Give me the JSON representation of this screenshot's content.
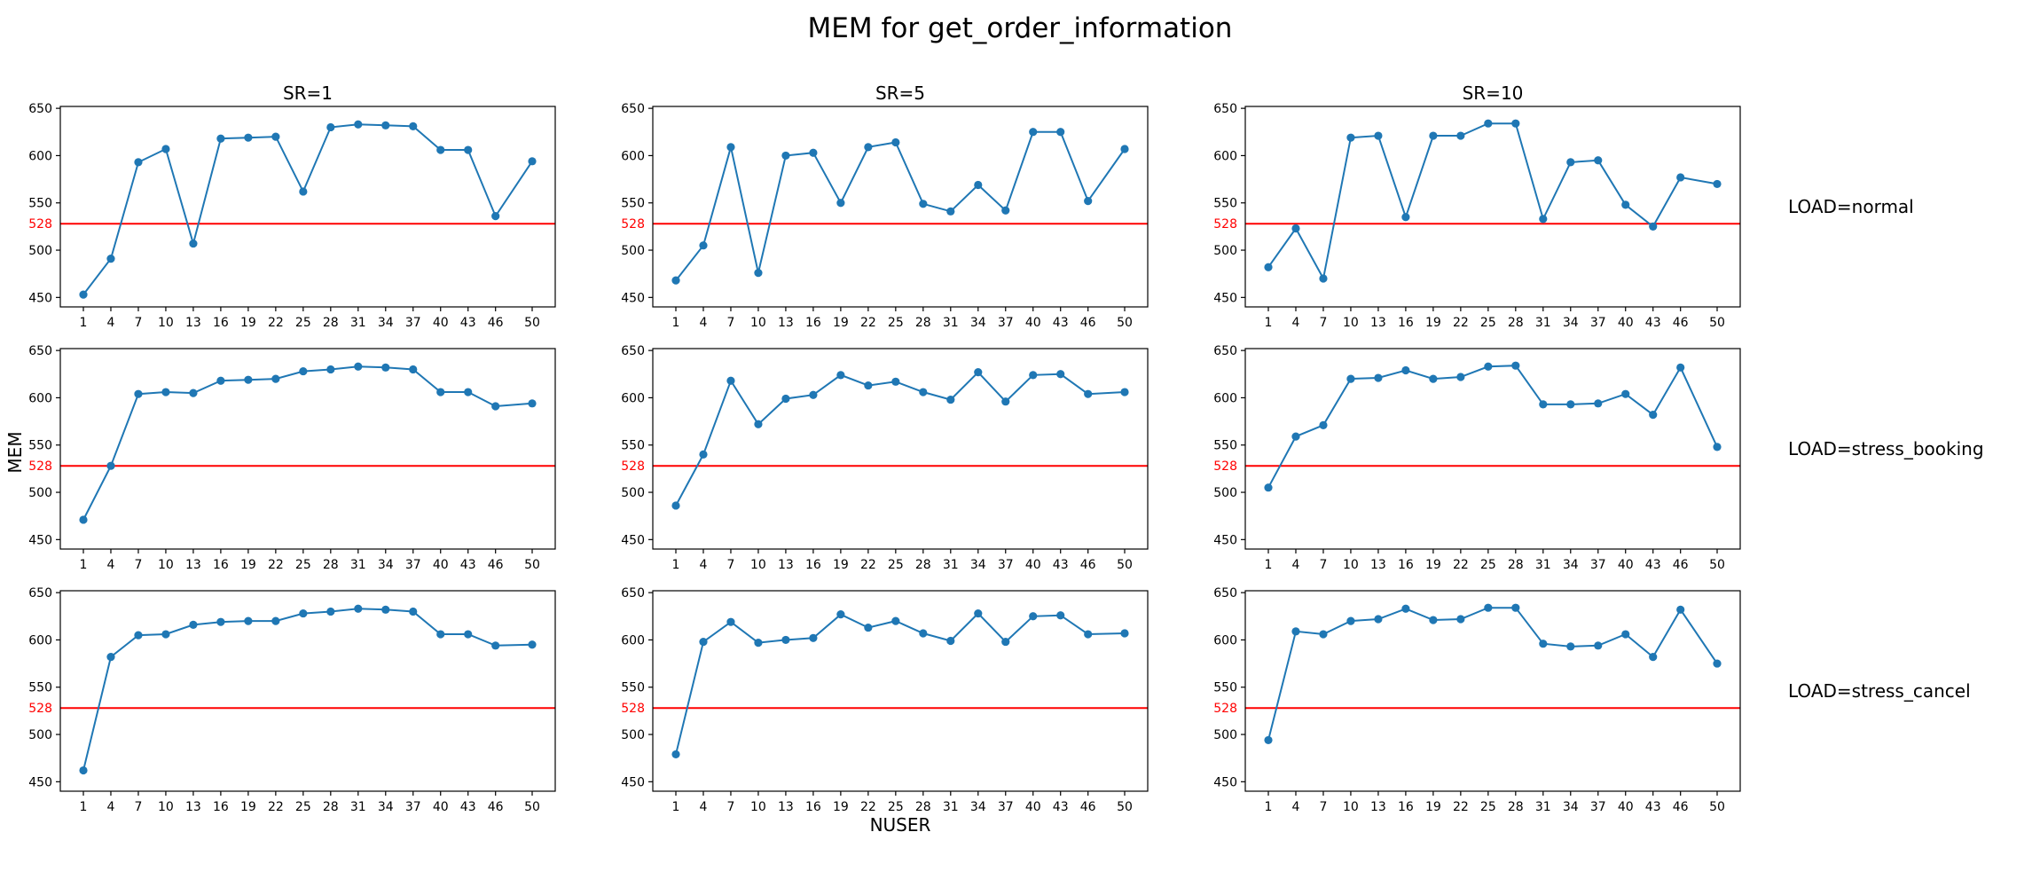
{
  "title": "MEM for get_order_information",
  "xlabel": "NUSER",
  "ylabel": "MEM",
  "colors": {
    "series": "#1f77b4",
    "threshold": "#ff0000",
    "text": "#000000"
  },
  "chart_data": {
    "type": "line",
    "title": "MEM for get_order_information",
    "xlabel": "NUSER",
    "ylabel": "MEM",
    "x": [
      1,
      4,
      7,
      10,
      13,
      16,
      19,
      22,
      25,
      28,
      31,
      34,
      37,
      40,
      43,
      46,
      50
    ],
    "ylim": [
      440,
      652
    ],
    "yticks": [
      450,
      500,
      550,
      600,
      650
    ],
    "threshold": 528,
    "threshold_label": "528",
    "grid": false,
    "columns": [
      "SR=1",
      "SR=5",
      "SR=10"
    ],
    "rows": [
      "LOAD=normal",
      "LOAD=stress_booking",
      "LOAD=stress_cancel"
    ],
    "panels": [
      {
        "row": 0,
        "col": 0,
        "values": [
          453,
          491,
          593,
          607,
          507,
          618,
          619,
          620,
          562,
          630,
          633,
          632,
          631,
          606,
          606,
          536,
          594
        ]
      },
      {
        "row": 0,
        "col": 1,
        "values": [
          468,
          505,
          609,
          476,
          600,
          603,
          550,
          609,
          614,
          549,
          541,
          569,
          542,
          625,
          625,
          552,
          607
        ]
      },
      {
        "row": 0,
        "col": 2,
        "values": [
          482,
          523,
          470,
          619,
          621,
          535,
          621,
          621,
          634,
          634,
          533,
          593,
          595,
          548,
          525,
          577,
          570
        ]
      },
      {
        "row": 1,
        "col": 0,
        "values": [
          471,
          528,
          604,
          606,
          605,
          618,
          619,
          620,
          628,
          630,
          633,
          632,
          630,
          606,
          606,
          591,
          594
        ]
      },
      {
        "row": 1,
        "col": 1,
        "values": [
          486,
          540,
          618,
          572,
          599,
          603,
          624,
          613,
          617,
          606,
          598,
          627,
          596,
          624,
          625,
          604,
          606
        ]
      },
      {
        "row": 1,
        "col": 2,
        "values": [
          505,
          559,
          571,
          620,
          621,
          629,
          620,
          622,
          633,
          634,
          593,
          593,
          594,
          604,
          582,
          632,
          548
        ]
      },
      {
        "row": 2,
        "col": 0,
        "values": [
          462,
          582,
          605,
          606,
          616,
          619,
          620,
          620,
          628,
          630,
          633,
          632,
          630,
          606,
          606,
          594,
          595
        ]
      },
      {
        "row": 2,
        "col": 1,
        "values": [
          479,
          598,
          619,
          597,
          600,
          602,
          627,
          613,
          620,
          607,
          599,
          628,
          598,
          625,
          626,
          606,
          607
        ]
      },
      {
        "row": 2,
        "col": 2,
        "values": [
          494,
          609,
          606,
          620,
          622,
          633,
          621,
          622,
          634,
          634,
          596,
          593,
          594,
          606,
          582,
          632,
          575
        ]
      }
    ]
  }
}
